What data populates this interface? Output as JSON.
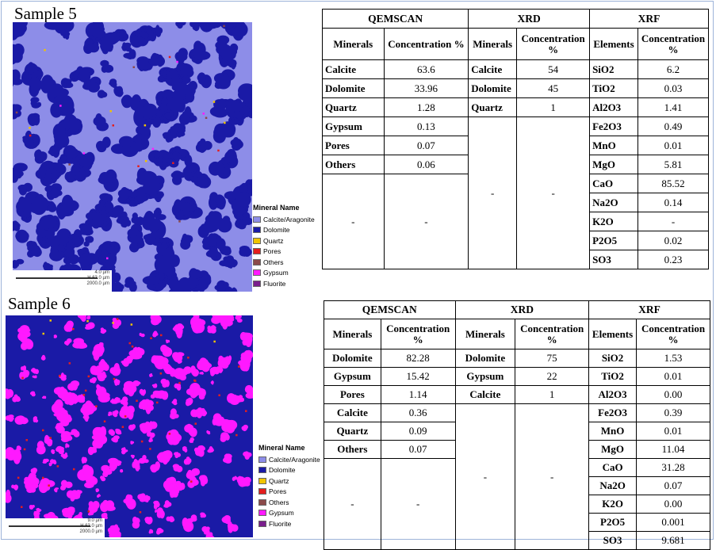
{
  "colors": {
    "calcite": "#8d8de8",
    "dolomite": "#1a1aa6",
    "quartz": "#f0c400",
    "pores": "#e41e1e",
    "others": "#8b4a4a",
    "gypsum": "#ff19ff",
    "fluorite": "#7a1e8c"
  },
  "legend": {
    "title": "Mineral Name",
    "items": [
      "Calcite/Aragonite",
      "Dolomite",
      "Quartz",
      "Pores",
      "Others",
      "Gypsum",
      "Fluorite"
    ]
  },
  "samples": [
    {
      "label": "Sample 5",
      "scale": [
        "4.0 µm",
        "H 63.0 µm",
        "2000.0 µm"
      ],
      "headers": {
        "qemscan": "QEMSCAN",
        "xrd": "XRD",
        "xrf": "XRF"
      },
      "subheaders": {
        "minerals": "Minerals",
        "concentration": "Concentration %",
        "elements": "Elements"
      },
      "qemscan": [
        {
          "name": "Calcite",
          "value": "63.6"
        },
        {
          "name": "Dolomite",
          "value": "33.96"
        },
        {
          "name": "Quartz",
          "value": "1.28"
        },
        {
          "name": "Gypsum",
          "value": "0.13"
        },
        {
          "name": "Pores",
          "value": "0.07"
        },
        {
          "name": "Others",
          "value": "0.06"
        }
      ],
      "qemscan_blank": [
        "-",
        "-"
      ],
      "xrd": [
        {
          "name": "Calcite",
          "value": "54"
        },
        {
          "name": "Dolomite",
          "value": "45"
        },
        {
          "name": "Quartz",
          "value": "1"
        }
      ],
      "xrd_blank": [
        "-",
        "-"
      ],
      "xrf": [
        {
          "name": "SiO2",
          "value": "6.2"
        },
        {
          "name": "TiO2",
          "value": "0.03"
        },
        {
          "name": "Al2O3",
          "value": "1.41"
        },
        {
          "name": "Fe2O3",
          "value": "0.49"
        },
        {
          "name": "MnO",
          "value": "0.01"
        },
        {
          "name": "MgO",
          "value": "5.81"
        },
        {
          "name": "CaO",
          "value": "85.52"
        },
        {
          "name": "Na2O",
          "value": "0.14"
        },
        {
          "name": "K2O",
          "value": "-"
        },
        {
          "name": "P2O5",
          "value": "0.02"
        },
        {
          "name": "SO3",
          "value": "0.23"
        }
      ]
    },
    {
      "label": "Sample 6",
      "scale": [
        "9.0 µm",
        "H 63.0 µm",
        "2000.0 µm"
      ],
      "headers": {
        "qemscan": "QEMSCAN",
        "xrd": "XRD",
        "xrf": "XRF"
      },
      "subheaders": {
        "minerals": "Minerals",
        "concentration": "Concentration %",
        "elements": "Elements"
      },
      "qemscan": [
        {
          "name": "Dolomite",
          "value": "82.28"
        },
        {
          "name": "Gypsum",
          "value": "15.42"
        },
        {
          "name": "Pores",
          "value": "1.14"
        },
        {
          "name": "Calcite",
          "value": "0.36"
        },
        {
          "name": "Quartz",
          "value": "0.09"
        },
        {
          "name": "Others",
          "value": "0.07"
        }
      ],
      "qemscan_blank": [
        "-",
        "-"
      ],
      "xrd": [
        {
          "name": "Dolomite",
          "value": "75"
        },
        {
          "name": "Gypsum",
          "value": "22"
        },
        {
          "name": "Calcite",
          "value": "1"
        }
      ],
      "xrd_blank": [
        "-",
        "-"
      ],
      "xrf": [
        {
          "name": "SiO2",
          "value": "1.53"
        },
        {
          "name": "TiO2",
          "value": "0.01"
        },
        {
          "name": "Al2O3",
          "value": "0.00"
        },
        {
          "name": "Fe2O3",
          "value": "0.39"
        },
        {
          "name": "MnO",
          "value": "0.01"
        },
        {
          "name": "MgO",
          "value": "11.04"
        },
        {
          "name": "CaO",
          "value": "31.28"
        },
        {
          "name": "Na2O",
          "value": "0.07"
        },
        {
          "name": "K2O",
          "value": "0.00"
        },
        {
          "name": "P2O5",
          "value": "0.001"
        },
        {
          "name": "SO3",
          "value": "9.681"
        }
      ]
    }
  ]
}
